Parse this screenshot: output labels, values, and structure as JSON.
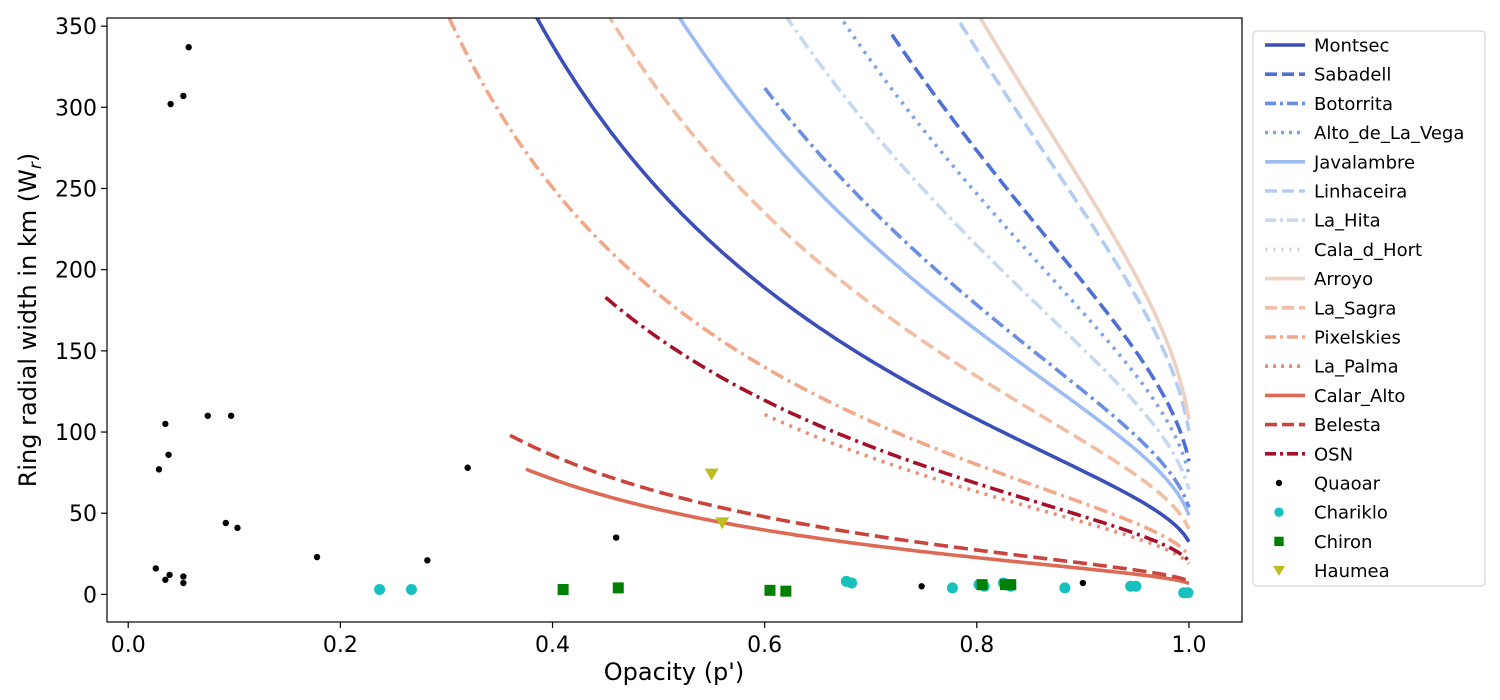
{
  "chart_data": {
    "type": "line",
    "title": "",
    "xlabel": "Opacity (p')",
    "ylabel": "Ring radial width in km (W",
    "ylabel_sub": "r",
    "ylabel_end": ")",
    "xlim": [
      -0.02,
      1.05
    ],
    "ylim": [
      -17,
      355
    ],
    "xticks": [
      0.0,
      0.2,
      0.4,
      0.6,
      0.8,
      1.0
    ],
    "xtick_labels": [
      "0.0",
      "0.2",
      "0.4",
      "0.6",
      "0.8",
      "1.0"
    ],
    "yticks": [
      0,
      50,
      100,
      150,
      200,
      250,
      300,
      350
    ],
    "ytick_labels": [
      "0",
      "50",
      "100",
      "150",
      "200",
      "250",
      "300",
      "350"
    ],
    "grid": false,
    "legend_position": "outside-right",
    "series": [
      {
        "name": "Montsec",
        "kind": "curve",
        "p0": 0.12,
        "p1": 1.0,
        "w_at_1": 32.4,
        "color": "#3c4fb8",
        "dash": "solid"
      },
      {
        "name": "Sabadell",
        "kind": "curve",
        "p0": 0.72,
        "p1": 1.0,
        "w_at_1": 82,
        "color": "#4f6fd4",
        "dash": "dash"
      },
      {
        "name": "Botorrita",
        "kind": "curve",
        "p0": 0.6,
        "p1": 1.0,
        "w_at_1": 53.5,
        "color": "#6b8ee0",
        "dash": "dashdot"
      },
      {
        "name": "Alto_de_La_Vega",
        "kind": "curve",
        "p0": 0.33,
        "p1": 1.0,
        "w_at_1": 74,
        "color": "#7fa2ec",
        "dash": "dot"
      },
      {
        "name": "Javalambre",
        "kind": "curve",
        "p0": 0.31,
        "p1": 1.0,
        "w_at_1": 48.8,
        "color": "#9dbcf2",
        "dash": "solid"
      },
      {
        "name": "Linhaceira",
        "kind": "curve",
        "p0": 0.45,
        "p1": 1.0,
        "w_at_1": 100.7,
        "color": "#b3cdf2",
        "dash": "dash"
      },
      {
        "name": "La_Hita",
        "kind": "curve",
        "p0": 0.36,
        "p1": 1.0,
        "w_at_1": 64.5,
        "color": "#c8d8ee",
        "dash": "dashdot"
      },
      {
        "name": "Cala_d_Hort",
        "kind": "curve",
        "p0": 0.36,
        "p1": 1.0,
        "w_at_1": 64.5,
        "color": "#d6dde9",
        "dash": "dot",
        "hidden_in_plot": true
      },
      {
        "name": "Arroyo",
        "kind": "curve",
        "p0": 0.48,
        "p1": 1.0,
        "w_at_1": 107.6,
        "color": "#edd1c3",
        "dash": "solid"
      },
      {
        "name": "La_Sagra",
        "kind": "curve",
        "p0": 0.36,
        "p1": 1.0,
        "w_at_1": 40.3,
        "color": "#f2bea3",
        "dash": "dash"
      },
      {
        "name": "Pixelskies",
        "kind": "curve",
        "p0": 0.215,
        "p1": 1.0,
        "w_at_1": 24,
        "color": "#f1a889",
        "dash": "dashdot"
      },
      {
        "name": "La_Palma",
        "kind": "curve",
        "p0": 0.6,
        "p1": 1.0,
        "w_at_1": 19,
        "color": "#e98c74",
        "dash": "dot"
      },
      {
        "name": "Calar_Alto",
        "kind": "curve",
        "p0": 0.375,
        "p1": 1.0,
        "w_at_1": 6.8,
        "color": "#dc6a55",
        "dash": "solid"
      },
      {
        "name": "Belesta",
        "kind": "curve",
        "p0": 0.36,
        "p1": 1.0,
        "w_at_1": 8.2,
        "color": "#c9443d",
        "dash": "dash"
      },
      {
        "name": "OSN",
        "kind": "curve",
        "p0": 0.45,
        "p1": 1.0,
        "w_at_1": 20.5,
        "color": "#a8102a",
        "dash": "dashdot"
      },
      {
        "name": "Quaoar",
        "kind": "scatter",
        "marker": "dot",
        "color": "#000000",
        "x": [
          0.057,
          0.052,
          0.04,
          0.035,
          0.029,
          0.038,
          0.075,
          0.097,
          0.092,
          0.103,
          0.026,
          0.035,
          0.039,
          0.052,
          0.052,
          0.178,
          0.282,
          0.32,
          0.46,
          0.748,
          0.9
        ],
        "y": [
          337,
          307,
          302,
          105,
          77,
          86,
          110,
          110,
          44,
          41,
          16,
          9,
          12,
          11,
          7,
          23,
          21,
          78,
          35,
          5,
          7
        ]
      },
      {
        "name": "Chariklo",
        "kind": "scatter",
        "marker": "circle",
        "color": "#17bfbf",
        "x": [
          0.237,
          0.267,
          0.677,
          0.682,
          0.777,
          0.802,
          0.807,
          0.825,
          0.832,
          0.883,
          0.945,
          0.95,
          0.995,
          0.999
        ],
        "y": [
          3,
          3,
          8,
          7,
          4,
          6,
          5,
          7,
          5,
          4,
          5,
          5,
          1,
          1
        ]
      },
      {
        "name": "Chiron",
        "kind": "scatter",
        "marker": "square",
        "color": "#008000",
        "x": [
          0.41,
          0.462,
          0.605,
          0.62,
          0.805,
          0.827,
          0.832
        ],
        "y": [
          3,
          4,
          2.5,
          2,
          6,
          6,
          6
        ]
      },
      {
        "name": "Haumea",
        "kind": "scatter",
        "marker": "triangle",
        "color": "#bcbd22",
        "x": [
          0.55,
          0.56
        ],
        "y": [
          74,
          44
        ]
      }
    ]
  }
}
